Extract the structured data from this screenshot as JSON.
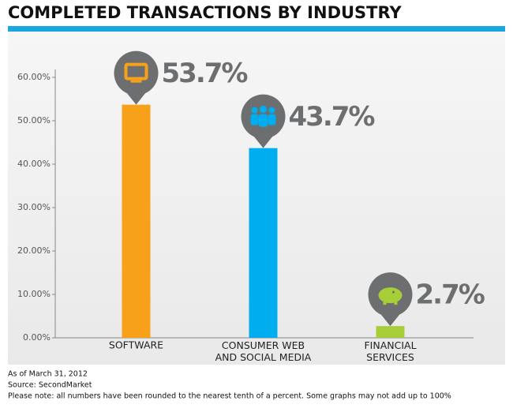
{
  "chart_data": {
    "type": "bar",
    "title": "COMPLETED TRANSACTIONS BY INDUSTRY",
    "categories": [
      "SOFTWARE",
      "CONSUMER WEB\nAND SOCIAL MEDIA",
      "FINANCIAL\nSERVICES"
    ],
    "values": [
      53.7,
      43.7,
      2.7
    ],
    "value_labels": [
      "53.7%",
      "43.7%",
      "2.7%"
    ],
    "colors": [
      "#f7a11a",
      "#00aeef",
      "#a6ce39"
    ],
    "ylim": [
      0,
      60
    ],
    "yticks": [
      {
        "value": 0,
        "label": "0.00%"
      },
      {
        "value": 10,
        "label": "10.00%"
      },
      {
        "value": 20,
        "label": "20.00%"
      },
      {
        "value": 30,
        "label": "30.00%"
      },
      {
        "value": 40,
        "label": "40.00%"
      },
      {
        "value": 50,
        "label": "50.00%"
      },
      {
        "value": 60,
        "label": "60.00%"
      }
    ],
    "notes": [
      "As of March 31, 2012",
      "Source: SecondMarket",
      "Please note: all numbers have been rounded to the nearest tenth of a percent. Some graphs may not add up to 100%"
    ]
  }
}
